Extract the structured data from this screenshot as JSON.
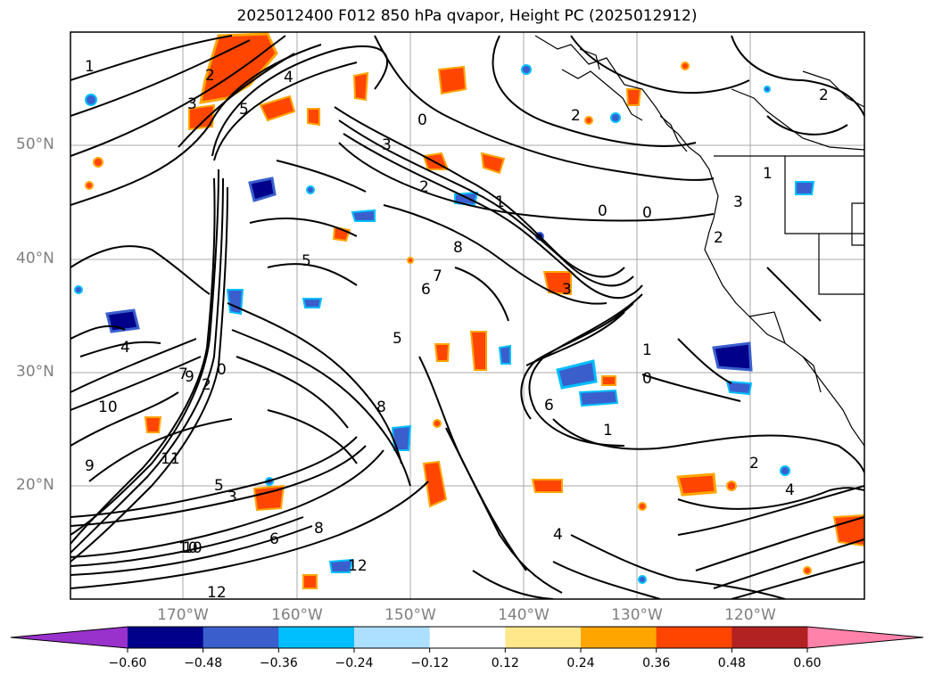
{
  "title": "2025012400 F012 850 hPa qvapor, Height PC (2025012912)",
  "lat_labels": [
    "50°N",
    "40°N",
    "30°N",
    "20°N"
  ],
  "lon_labels": [
    "170°W",
    "160°W",
    "150°W",
    "140°W",
    "130°W",
    "120°W"
  ],
  "colorbar": {
    "ticks": [
      "−0.60",
      "−0.48",
      "−0.36",
      "−0.24",
      "−0.12",
      "0.12",
      "0.24",
      "0.36",
      "0.48",
      "0.60"
    ],
    "colors": [
      "#9932CC",
      "#00008B",
      "#3A5FCD",
      "#00BFFF",
      "#ADDFFF",
      "#FFFFFF",
      "#FFE88C",
      "#FFA500",
      "#FF4500",
      "#B22222",
      "#FF82AB"
    ]
  },
  "contour_labels": [
    "1",
    "2",
    "3",
    "4",
    "5",
    "0",
    "2",
    "3",
    "2",
    "1",
    "0",
    "0",
    "2",
    "1",
    "3",
    "2",
    "5",
    "6",
    "7",
    "8",
    "9",
    "10",
    "11",
    "12",
    "10",
    "9",
    "5",
    "3",
    "4",
    "6",
    "8",
    "0",
    "1",
    "2",
    "4",
    "6",
    "7",
    "12",
    "10",
    "8",
    "4",
    "2",
    "1",
    "0",
    "3",
    "5"
  ]
}
